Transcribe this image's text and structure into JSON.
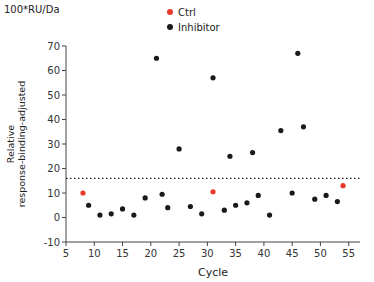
{
  "chart_data": {
    "type": "scatter",
    "x_label": "Cycle",
    "y_label": "Relative\nresponse-binding-adjusted",
    "annotations": [
      {
        "text": "100*RU/Da"
      }
    ],
    "series": [
      {
        "name": "Ctrl",
        "color": "#e8392a",
        "x": [
          8,
          31,
          54
        ],
        "values": [
          10,
          10.5,
          13
        ]
      },
      {
        "name": "Inhibitor",
        "color": "#1a1a1a",
        "x": [
          9,
          11,
          13,
          15,
          17,
          19,
          21,
          22,
          23,
          25,
          27,
          29,
          31,
          33,
          34,
          35,
          37,
          38,
          39,
          41,
          43,
          45,
          46,
          47,
          49,
          51,
          53
        ],
        "values": [
          5,
          1,
          1.5,
          3.5,
          1,
          8,
          65,
          9.5,
          4,
          28,
          4.5,
          1.5,
          57,
          3,
          25,
          5,
          6,
          26.5,
          9,
          1,
          35.5,
          10,
          67,
          37,
          7.5,
          9,
          6.5
        ]
      }
    ],
    "hlines": [
      {
        "y": 16,
        "color": "#1a1a1a",
        "line_style": "dotted"
      }
    ],
    "xlim": [
      5,
      57
    ],
    "ylim": [
      -10,
      70
    ],
    "xticks": [
      5,
      10,
      15,
      20,
      25,
      30,
      35,
      40,
      45,
      50,
      55
    ],
    "yticks": [
      -10,
      0,
      10,
      20,
      30,
      40,
      50,
      60,
      70
    ],
    "grid": false,
    "legend": "top"
  }
}
